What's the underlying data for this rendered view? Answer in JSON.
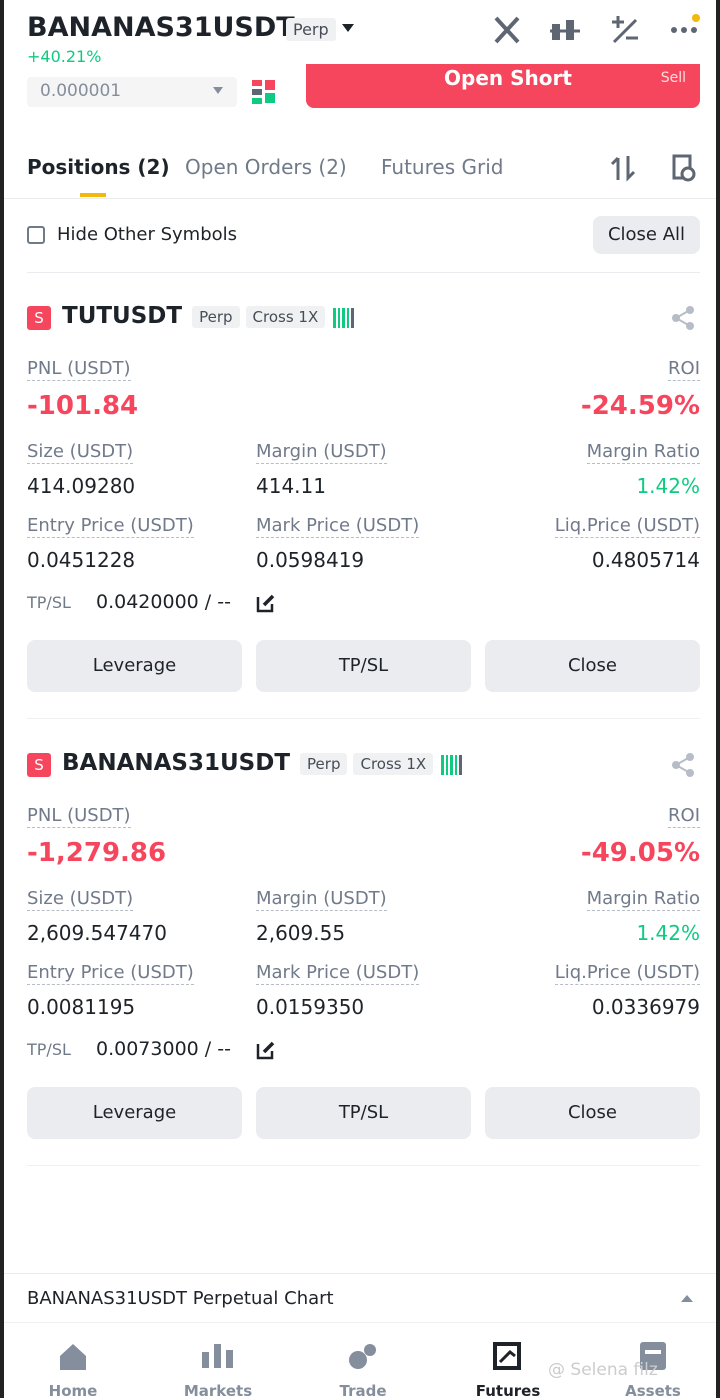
{
  "header": {
    "symbol": "BANANAS31USDT",
    "badge": "Perp",
    "change": "+40.21%"
  },
  "order_bar": {
    "price_step": "0.000001",
    "button": "Open Short",
    "button_side": "Sell"
  },
  "tabs": [
    "Positions (2)",
    "Open Orders (2)",
    "Futures Grid"
  ],
  "filter": {
    "checkbox": "Hide Other Symbols",
    "close_all": "Close All"
  },
  "positions": [
    {
      "side": "S",
      "symbol": "TUTUSDT",
      "type": "Perp",
      "mode": "Cross 1X",
      "pnl_label": "PNL (USDT)",
      "pnl": "-101.84",
      "roi_label": "ROI",
      "roi": "-24.59%",
      "fields": [
        {
          "label": "Size (USDT)",
          "value": "414.09280"
        },
        {
          "label": "Margin (USDT)",
          "value": "414.11"
        },
        {
          "label": "Margin Ratio",
          "value": "1.42%"
        },
        {
          "label": "Entry Price (USDT)",
          "value": "0.0451228"
        },
        {
          "label": "Mark Price (USDT)",
          "value": "0.0598419"
        },
        {
          "label": "Liq.Price (USDT)",
          "value": "0.4805714"
        }
      ],
      "tpsl_label": "TP/SL",
      "tpsl": "0.0420000 / --",
      "buttons": [
        "Leverage",
        "TP/SL",
        "Close"
      ]
    },
    {
      "side": "S",
      "symbol": "BANANAS31USDT",
      "type": "Perp",
      "mode": "Cross 1X",
      "pnl_label": "PNL (USDT)",
      "pnl": "-1,279.86",
      "roi_label": "ROI",
      "roi": "-49.05%",
      "fields": [
        {
          "label": "Size (USDT)",
          "value": "2,609.547470"
        },
        {
          "label": "Margin (USDT)",
          "value": "2,609.55"
        },
        {
          "label": "Margin Ratio",
          "value": "1.42%"
        },
        {
          "label": "Entry Price (USDT)",
          "value": "0.0081195"
        },
        {
          "label": "Mark Price (USDT)",
          "value": "0.0159350"
        },
        {
          "label": "Liq.Price (USDT)",
          "value": "0.0336979"
        }
      ],
      "tpsl_label": "TP/SL",
      "tpsl": "0.0073000 / --",
      "buttons": [
        "Leverage",
        "TP/SL",
        "Close"
      ]
    }
  ],
  "chart_bar": "BANANAS31USDT Perpetual  Chart",
  "nav": [
    "Home",
    "Markets",
    "Trade",
    "Futures",
    "Assets"
  ],
  "watermark": "@ Selena filz"
}
